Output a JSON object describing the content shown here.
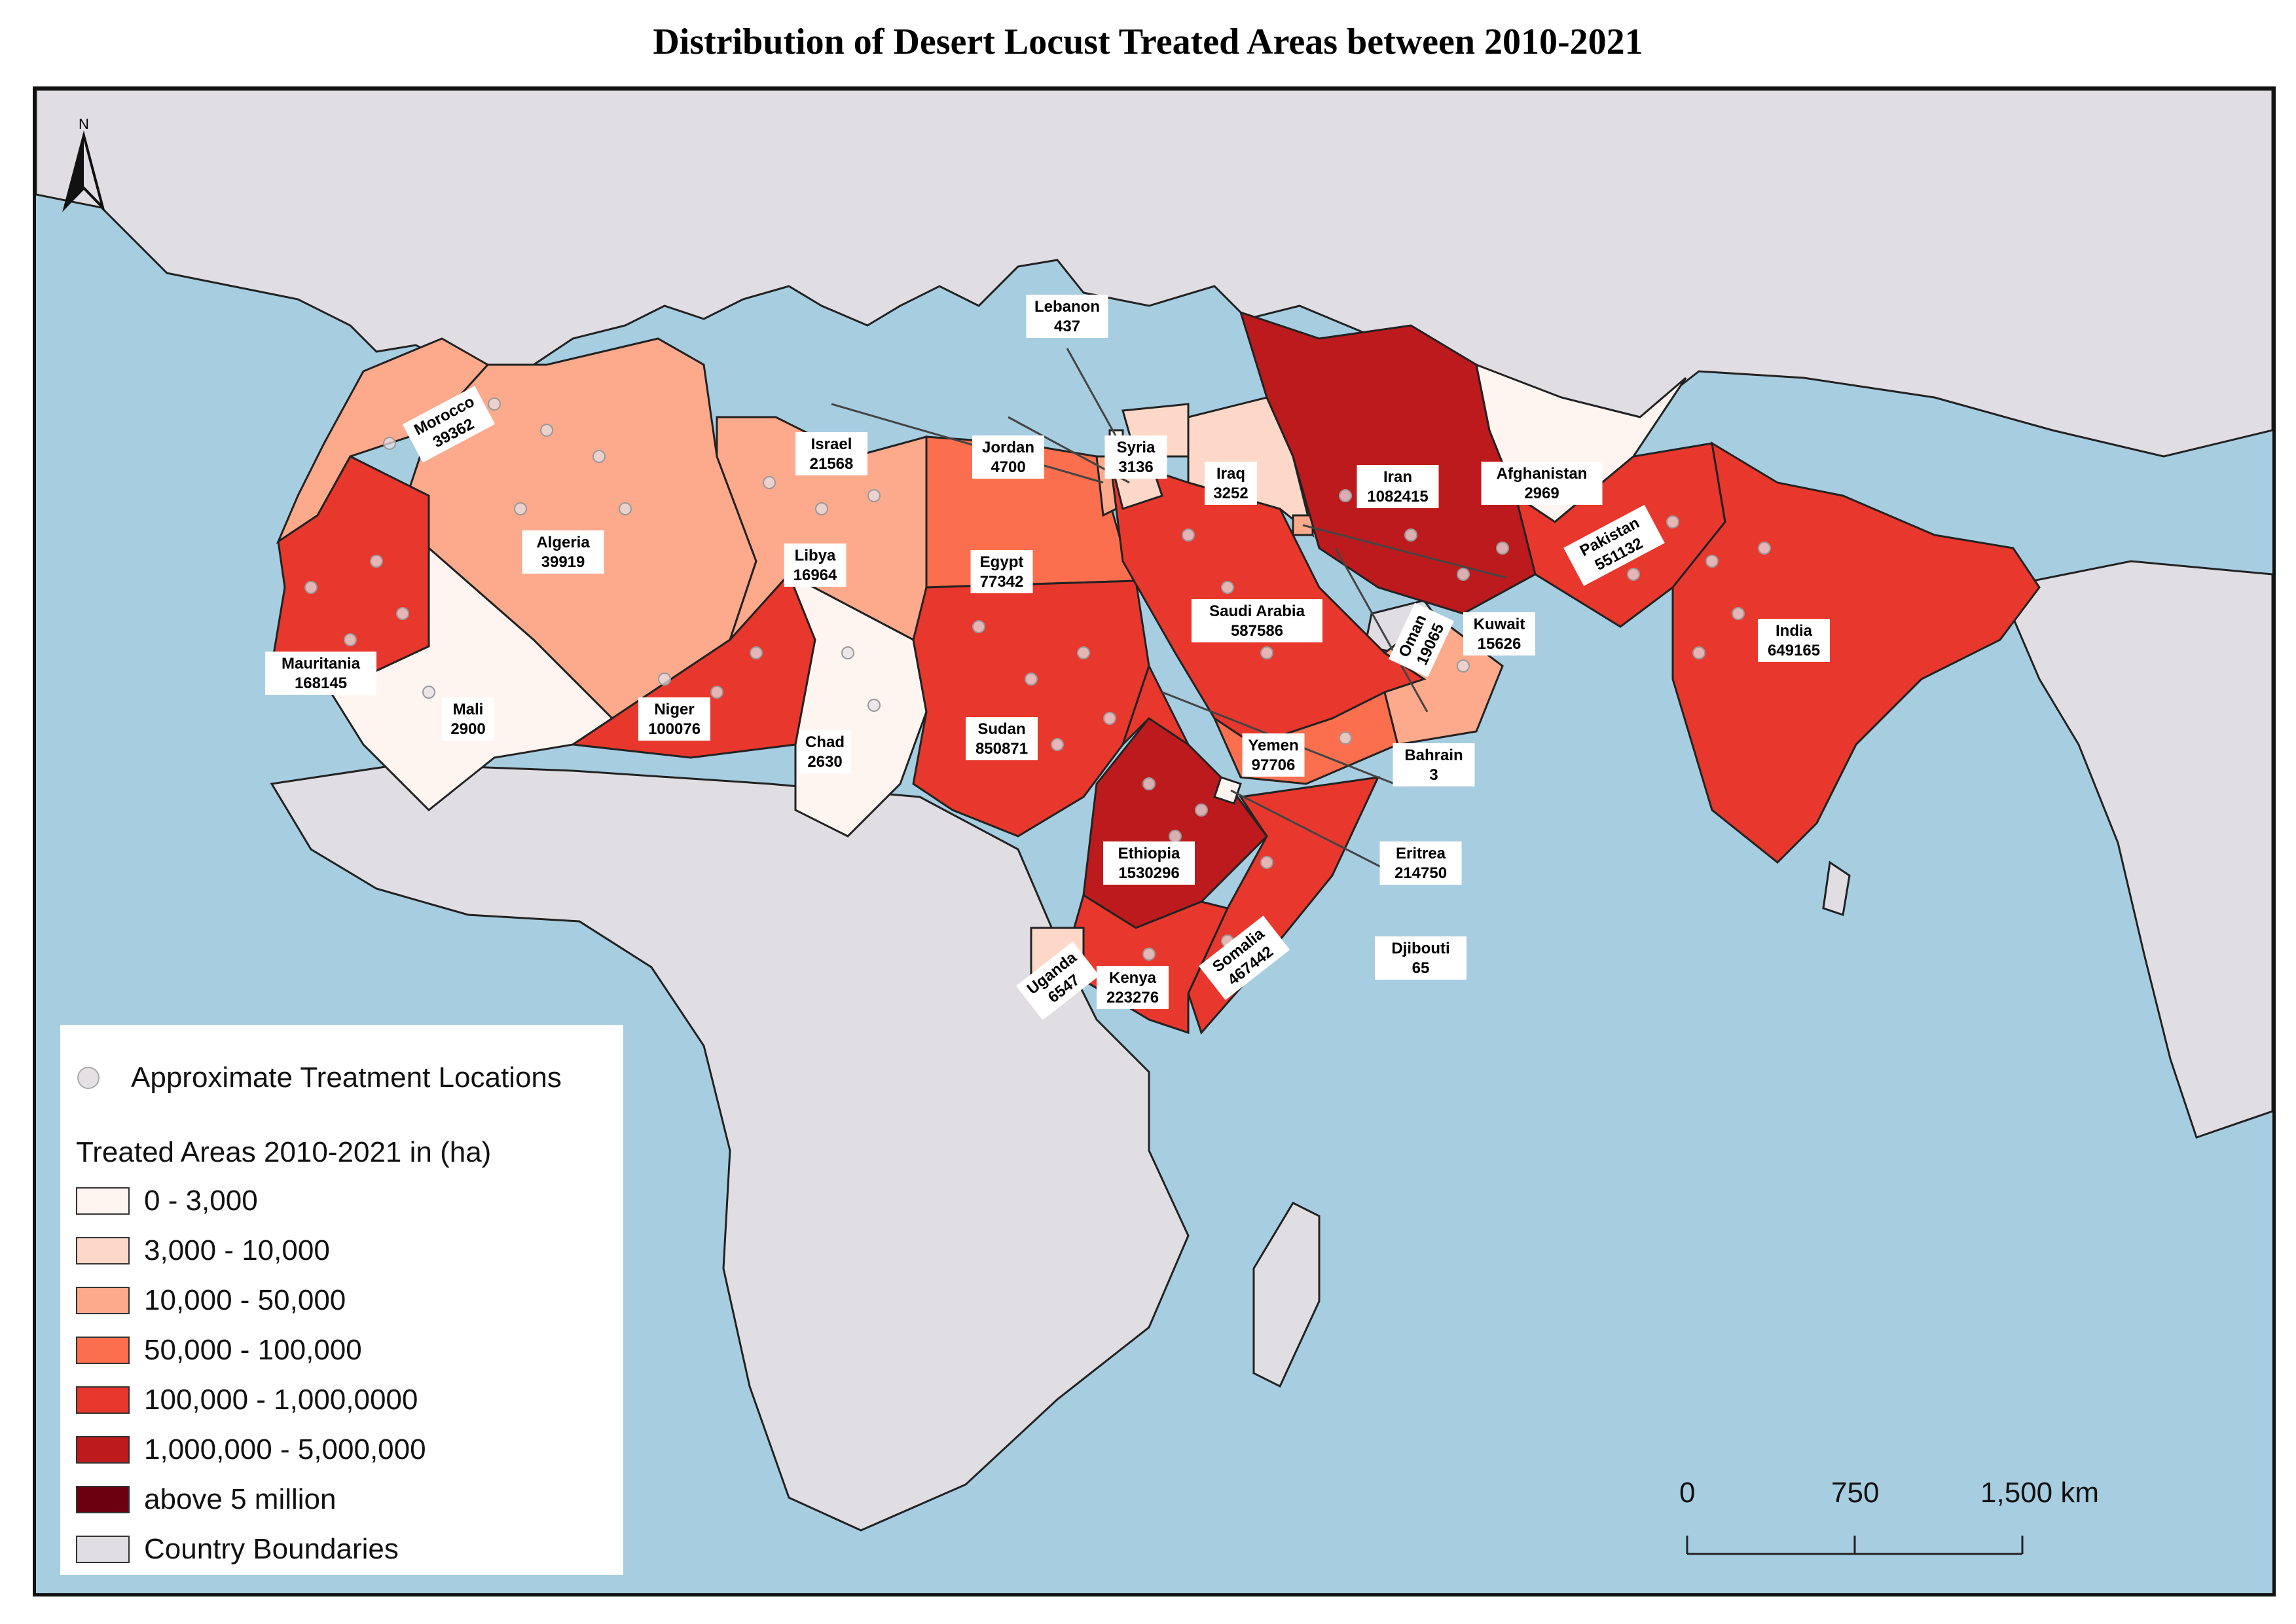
{
  "title": "Distribution of Desert Locust Treated Areas between 2010-2021",
  "north_label": "N",
  "colors": {
    "ocean": "#a7cde1",
    "land": "#e0dde3",
    "class_0": "#fef5f1",
    "class_1": "#fdd8c8",
    "class_2": "#fca98c",
    "class_3": "#fb6f4e",
    "class_4": "#e8372c",
    "class_5": "#bd1a1e",
    "class_6": "#6a0010",
    "dots": "#e6e0e4"
  },
  "countries": [
    {
      "name": "Morocco",
      "value": "39362",
      "class": 2
    },
    {
      "name": "Algeria",
      "value": "39919",
      "class": 2
    },
    {
      "name": "Libya",
      "value": "16964",
      "class": 2
    },
    {
      "name": "Egypt",
      "value": "77342",
      "class": 3
    },
    {
      "name": "Mauritania",
      "value": "168145",
      "class": 4
    },
    {
      "name": "Mali",
      "value": "2900",
      "class": 0
    },
    {
      "name": "Niger",
      "value": "100076",
      "class": 4
    },
    {
      "name": "Chad",
      "value": "2630",
      "class": 0
    },
    {
      "name": "Sudan",
      "value": "850871",
      "class": 4
    },
    {
      "name": "Ethiopia",
      "value": "1530296",
      "class": 5
    },
    {
      "name": "Somalia",
      "value": "467442",
      "class": 4
    },
    {
      "name": "Kenya",
      "value": "223276",
      "class": 4
    },
    {
      "name": "Uganda",
      "value": "6547",
      "class": 1
    },
    {
      "name": "Eritrea",
      "value": "214750",
      "class": 4
    },
    {
      "name": "Djibouti",
      "value": "65",
      "class": 0
    },
    {
      "name": "Saudi Arabia",
      "value": "587586",
      "class": 4
    },
    {
      "name": "Yemen",
      "value": "97706",
      "class": 3
    },
    {
      "name": "Oman",
      "value": "19065",
      "class": 2
    },
    {
      "name": "Bahrain",
      "value": "3",
      "class": 0
    },
    {
      "name": "Kuwait",
      "value": "15626",
      "class": 2
    },
    {
      "name": "Iraq",
      "value": "3252",
      "class": 1
    },
    {
      "name": "Syria",
      "value": "3136",
      "class": 1
    },
    {
      "name": "Lebanon",
      "value": "437",
      "class": 0
    },
    {
      "name": "Israel",
      "value": "21568",
      "class": 2
    },
    {
      "name": "Jordan",
      "value": "4700",
      "class": 1
    },
    {
      "name": "Iran",
      "value": "1082415",
      "class": 5
    },
    {
      "name": "Afghanistan",
      "value": "2969",
      "class": 0
    },
    {
      "name": "Pakistan",
      "value": "551132",
      "class": 4
    },
    {
      "name": "India",
      "value": "649165",
      "class": 4
    }
  ],
  "legend": {
    "dots_label": "Approximate Treatment Locations",
    "title": "Treated Areas 2010-2021 in (ha)",
    "classes": [
      "0 - 3,000",
      "3,000 - 10,000",
      "10,000 - 50,000",
      "50,000 - 100,000",
      "100,000 - 1,000,0000",
      "1,000,000 - 5,000,000",
      "above 5 million"
    ],
    "boundaries_label": "Country Boundaries"
  },
  "scale_bar": {
    "ticks": [
      "0",
      "750",
      "1,500 km"
    ]
  }
}
